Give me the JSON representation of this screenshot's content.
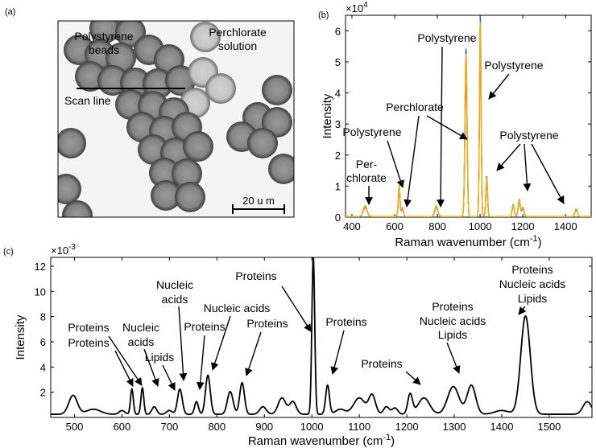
{
  "panel_a": {
    "tag": "(a)",
    "labels": {
      "beads_l1": "Polystyrene",
      "beads_l2": "beads",
      "solution_l1": "Perchlorate",
      "solution_l2": "solution",
      "scan": "Scan line",
      "scalebar": "20 u m"
    }
  },
  "chart_data": [
    {
      "id": "b",
      "type": "line",
      "tag": "(b)",
      "title": "",
      "xlabel": "Raman wavenumber (cm",
      "xlabel_sup": "-1",
      "xlabel_end": ")",
      "ylabel": "Intensity",
      "exponent_base": "×10",
      "exponent_power": "4",
      "xlim": [
        370,
        1520
      ],
      "ylim": [
        0,
        6.5
      ],
      "xticks": [
        400,
        600,
        800,
        1000,
        1200,
        1400
      ],
      "yticks": [
        0,
        1,
        2,
        3,
        4,
        5,
        6
      ],
      "series_colors": [
        "#0072BD",
        "#D95319",
        "#7E2F8E",
        "#77AC30",
        "#4DBEEE",
        "#A2142F",
        "#EDB120"
      ],
      "peaks": [
        {
          "x": 462,
          "h": 0.35,
          "w": 9
        },
        {
          "x": 621,
          "h": 1.0,
          "w": 4
        },
        {
          "x": 636,
          "h": 0.3,
          "w": 5
        },
        {
          "x": 795,
          "h": 0.35,
          "w": 7
        },
        {
          "x": 934,
          "h": 5.4,
          "w": 5
        },
        {
          "x": 1001,
          "h": 6.45,
          "w": 4
        },
        {
          "x": 1031,
          "h": 1.3,
          "w": 4
        },
        {
          "x": 1155,
          "h": 0.4,
          "w": 5
        },
        {
          "x": 1183,
          "h": 0.55,
          "w": 5
        },
        {
          "x": 1200,
          "h": 0.3,
          "w": 6
        },
        {
          "x": 1450,
          "h": 0.25,
          "w": 6
        }
      ],
      "annotations": [
        {
          "text": "Polystyrene"
        },
        {
          "text": "Perchlorate"
        },
        {
          "text": "Polystyrene"
        },
        {
          "text": "Polystyrene"
        },
        {
          "text": "Per-"
        },
        {
          "text": "chlorate"
        },
        {
          "text": "Polystyrene"
        }
      ]
    },
    {
      "id": "c",
      "type": "line",
      "tag": "(c)",
      "title": "",
      "xlabel": "Raman wavenumber (cm",
      "xlabel_sup": "-1",
      "xlabel_end": ")",
      "ylabel": "Intensity",
      "exponent_base": "×10",
      "exponent_power": "-3",
      "xlim": [
        450,
        1590
      ],
      "ylim": [
        0,
        12.7
      ],
      "xticks": [
        500,
        600,
        700,
        800,
        900,
        1000,
        1100,
        1200,
        1300,
        1400,
        1500
      ],
      "yticks": [
        2,
        4,
        6,
        8,
        10,
        12
      ],
      "baseline": 0.25,
      "peaks": [
        {
          "x": 497,
          "h": 1.5,
          "w": 9
        },
        {
          "x": 540,
          "h": 0.4,
          "w": 15
        },
        {
          "x": 600,
          "h": 0.3,
          "w": 6
        },
        {
          "x": 621,
          "h": 2.0,
          "w": 3
        },
        {
          "x": 643,
          "h": 2.1,
          "w": 3
        },
        {
          "x": 668,
          "h": 0.6,
          "w": 5
        },
        {
          "x": 700,
          "h": 0.3,
          "w": 6
        },
        {
          "x": 722,
          "h": 2.0,
          "w": 5
        },
        {
          "x": 757,
          "h": 1.0,
          "w": 4
        },
        {
          "x": 781,
          "h": 3.1,
          "w": 5
        },
        {
          "x": 828,
          "h": 1.8,
          "w": 6
        },
        {
          "x": 853,
          "h": 2.5,
          "w": 5
        },
        {
          "x": 897,
          "h": 0.6,
          "w": 7
        },
        {
          "x": 937,
          "h": 1.3,
          "w": 8
        },
        {
          "x": 960,
          "h": 1.0,
          "w": 7
        },
        {
          "x": 1003,
          "h": 12.5,
          "w": 3
        },
        {
          "x": 1033,
          "h": 2.3,
          "w": 4
        },
        {
          "x": 1060,
          "h": 0.4,
          "w": 10
        },
        {
          "x": 1100,
          "h": 1.3,
          "w": 12
        },
        {
          "x": 1127,
          "h": 1.5,
          "w": 7
        },
        {
          "x": 1157,
          "h": 0.6,
          "w": 6
        },
        {
          "x": 1175,
          "h": 0.5,
          "w": 6
        },
        {
          "x": 1207,
          "h": 1.6,
          "w": 5
        },
        {
          "x": 1236,
          "h": 1.3,
          "w": 12
        },
        {
          "x": 1298,
          "h": 2.2,
          "w": 12
        },
        {
          "x": 1336,
          "h": 2.3,
          "w": 9
        },
        {
          "x": 1450,
          "h": 7.8,
          "w": 10
        },
        {
          "x": 1400,
          "h": 0.3,
          "w": 15
        },
        {
          "x": 1580,
          "h": 1.0,
          "w": 9
        }
      ],
      "annotations": [
        {
          "text": "Proteins"
        },
        {
          "text": "Proteins"
        },
        {
          "text": "Nucleic"
        },
        {
          "text": "acids"
        },
        {
          "text": "Lipids"
        },
        {
          "text": "Nucleic"
        },
        {
          "text": "acids"
        },
        {
          "text": "Proteins"
        },
        {
          "text": "Nucleic acids"
        },
        {
          "text": "Proteins"
        },
        {
          "text": "Proteins"
        },
        {
          "text": "Proteins"
        },
        {
          "text": "Proteins"
        },
        {
          "text": "Proteins"
        },
        {
          "text": "Nucleic acids"
        },
        {
          "text": "Lipids"
        },
        {
          "text": "Proteins"
        },
        {
          "text": "Nucleic acids"
        },
        {
          "text": "Lipids"
        }
      ]
    }
  ]
}
